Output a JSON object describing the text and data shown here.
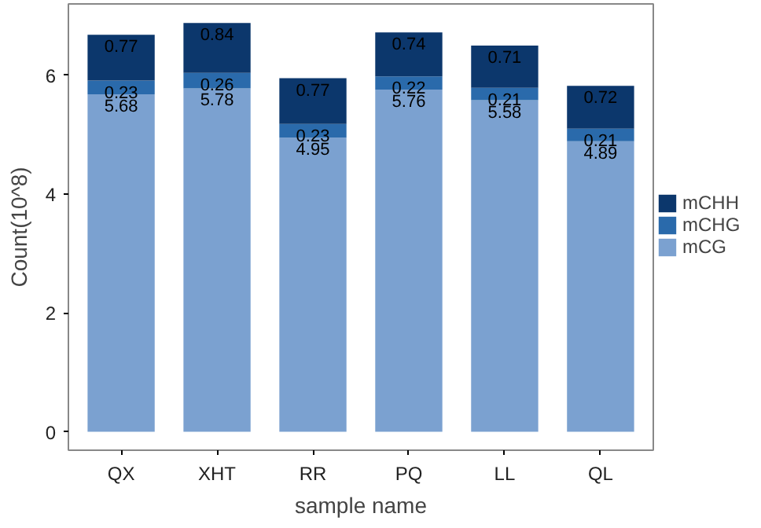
{
  "chart_data": {
    "type": "bar",
    "stacked": true,
    "xlabel": "sample name",
    "ylabel": "Count(10^8)",
    "categories": [
      "QX",
      "XHT",
      "RR",
      "PQ",
      "LL",
      "QL"
    ],
    "series": [
      {
        "name": "mCG",
        "color": "#7ba1d0",
        "values": [
          5.68,
          5.78,
          4.95,
          5.76,
          5.58,
          4.89
        ]
      },
      {
        "name": "mCHG",
        "color": "#2a6aab",
        "values": [
          0.23,
          0.26,
          0.23,
          0.22,
          0.21,
          0.21
        ]
      },
      {
        "name": "mCHH",
        "color": "#0c376c",
        "values": [
          0.77,
          0.84,
          0.77,
          0.74,
          0.71,
          0.72
        ]
      }
    ],
    "ylim": [
      -0.31,
      7.2
    ],
    "yticks": [
      0,
      2,
      4,
      6
    ],
    "grid": false,
    "legend": "right",
    "data_labels": true
  }
}
